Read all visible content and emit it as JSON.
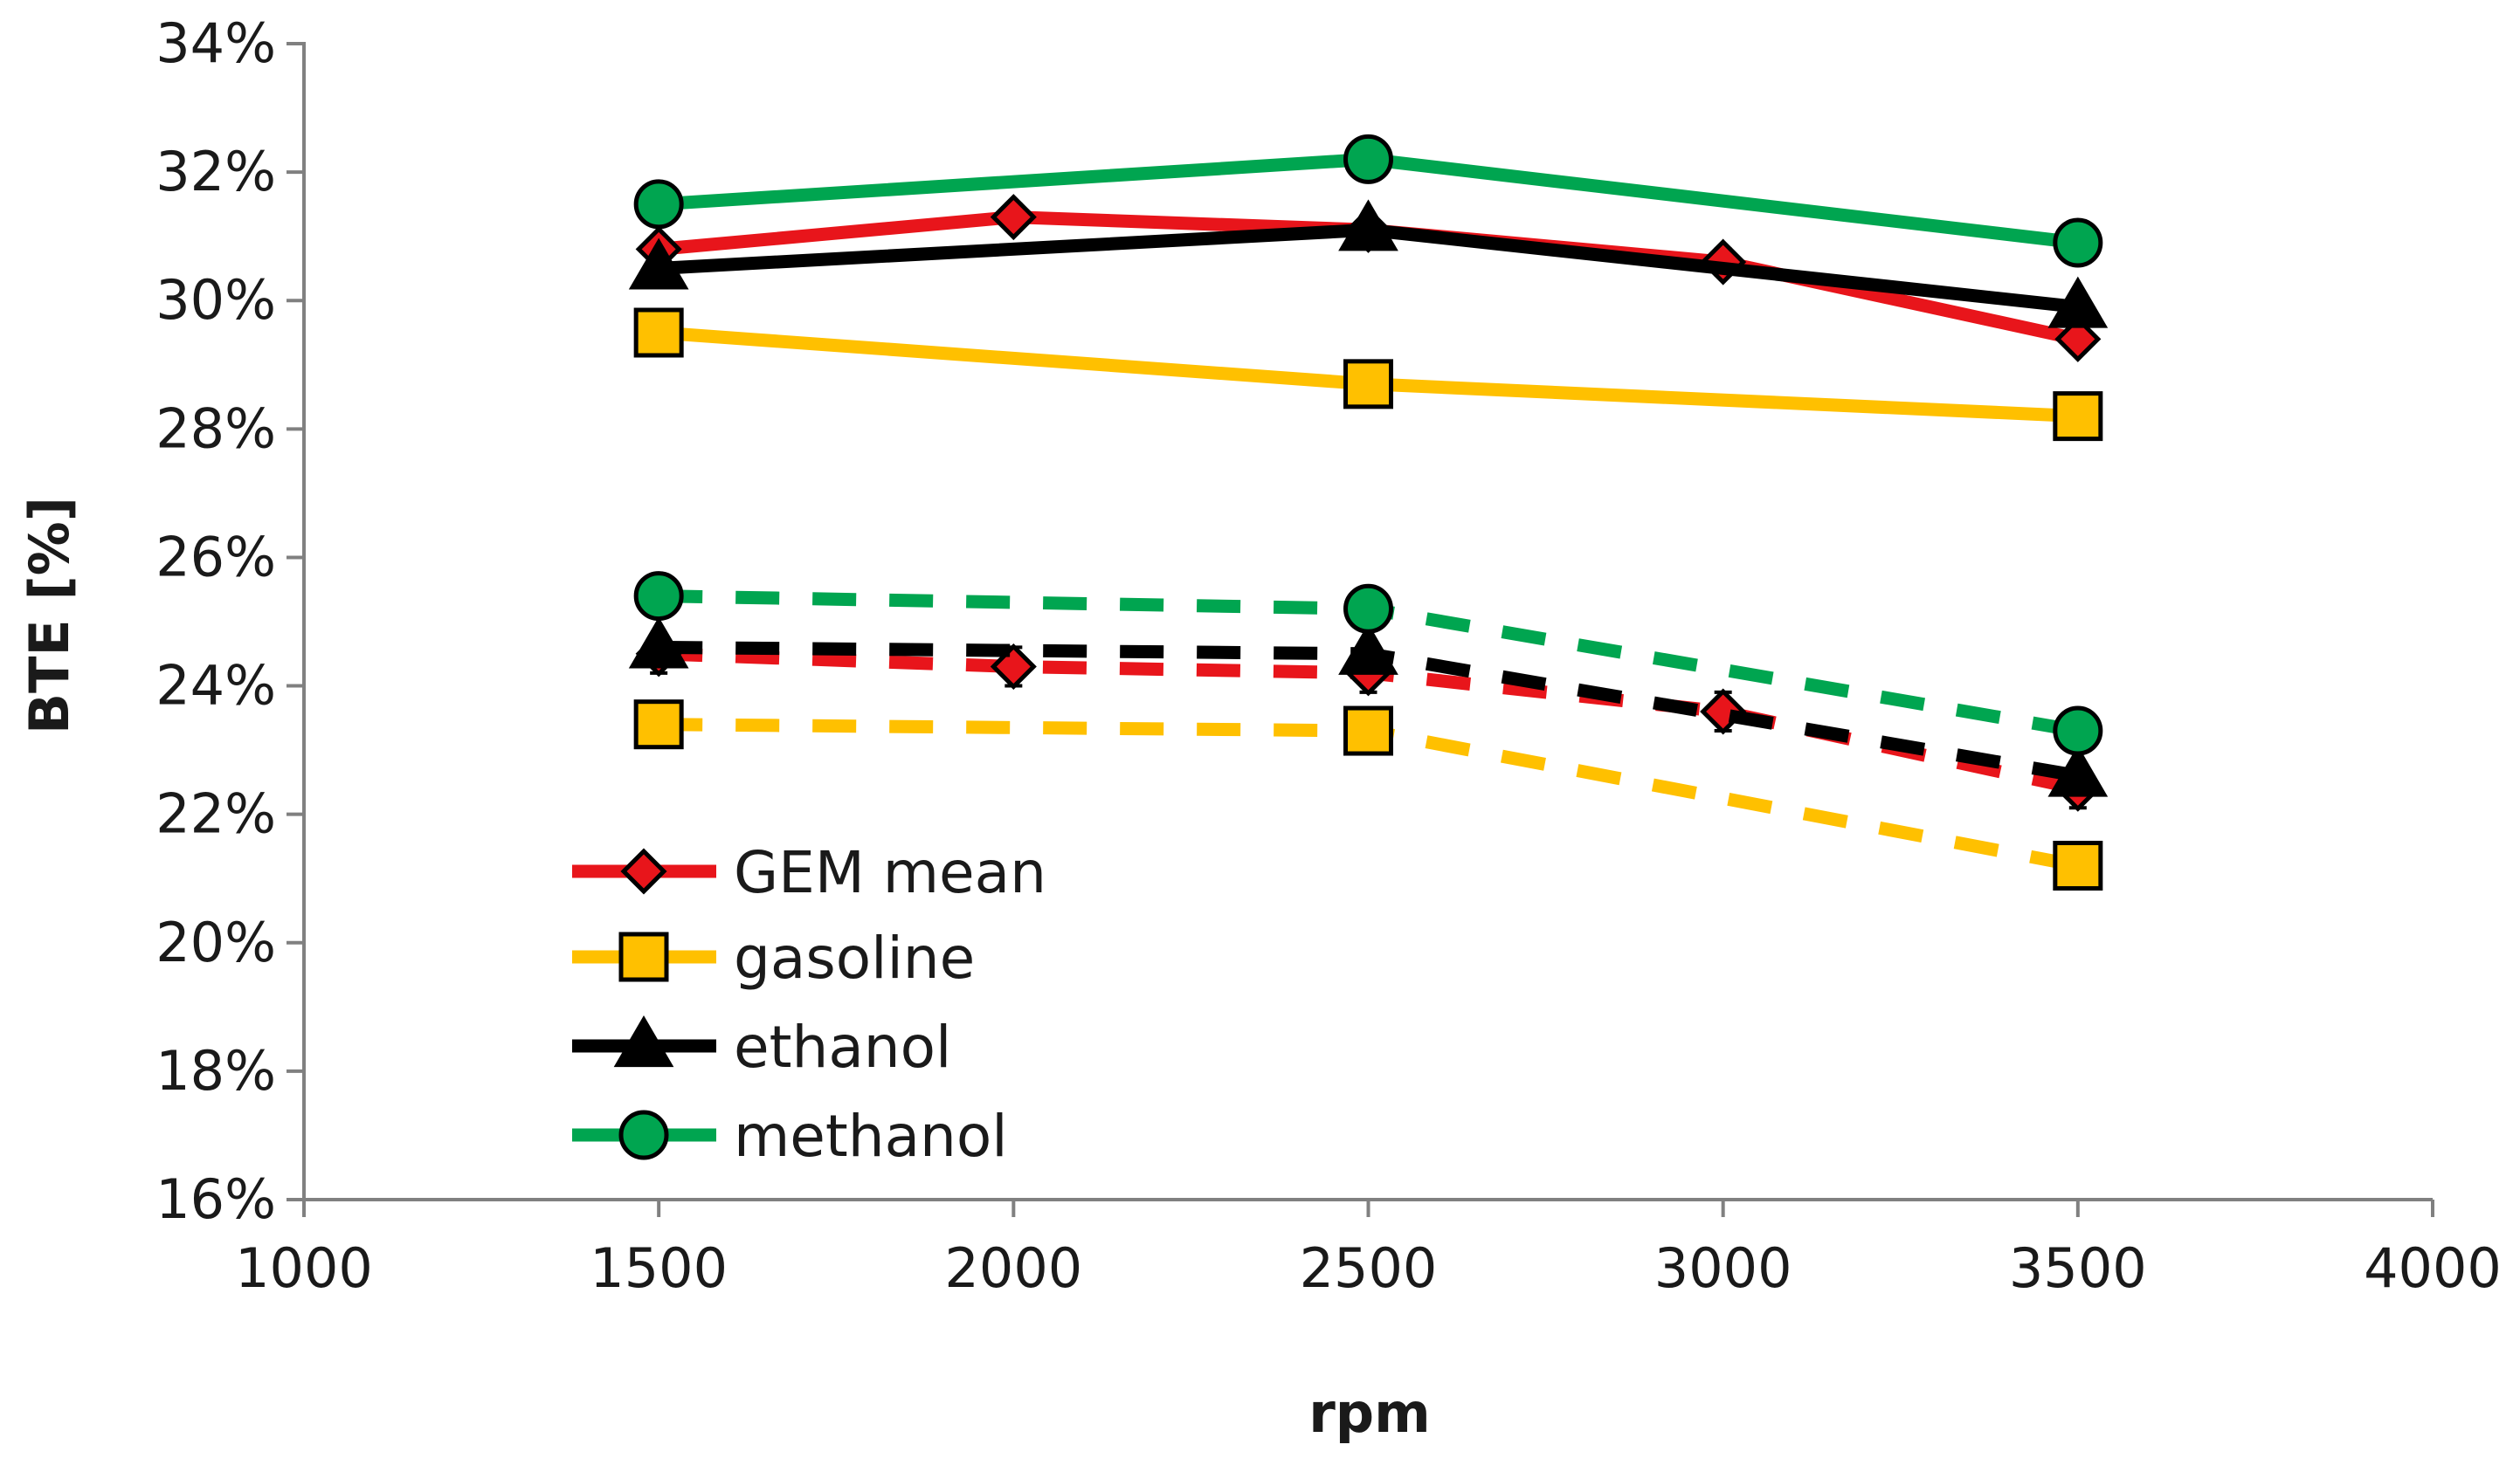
{
  "chart_data": {
    "type": "line",
    "xlabel": "rpm",
    "ylabel": "BTE [%]",
    "xlim": [
      1000,
      4000
    ],
    "ylim": [
      16,
      34
    ],
    "x_ticks": [
      1000,
      1500,
      2000,
      2500,
      3000,
      3500,
      4000
    ],
    "y_ticks": [
      16,
      18,
      20,
      22,
      24,
      26,
      28,
      30,
      32,
      34
    ],
    "y_tick_labels": [
      "16%",
      "18%",
      "20%",
      "22%",
      "24%",
      "26%",
      "28%",
      "30%",
      "32%",
      "34%"
    ],
    "grid": false,
    "legend_position": "bottom-left",
    "legend": [
      "GEM mean",
      "gasoline",
      "ethanol",
      "methanol"
    ],
    "series": [
      {
        "name": "GEM mean",
        "color": "#e8151b",
        "marker": "diamond",
        "line_style": "solid",
        "x": [
          1500,
          2000,
          2500,
          3000,
          3500
        ],
        "values": [
          30.8,
          31.3,
          31.1,
          30.6,
          29.4
        ],
        "errors": [
          0.2,
          0.2,
          0.2,
          0.2,
          0.2
        ]
      },
      {
        "name": "gasoline",
        "color": "#ffc000",
        "marker": "square",
        "line_style": "solid",
        "x": [
          1500,
          2500,
          3500
        ],
        "values": [
          29.5,
          28.7,
          28.2
        ]
      },
      {
        "name": "ethanol",
        "color": "#000000",
        "marker": "triangle",
        "line_style": "solid",
        "x": [
          1500,
          2500,
          3500
        ],
        "values": [
          30.5,
          31.1,
          29.9
        ]
      },
      {
        "name": "methanol",
        "color": "#00a550",
        "marker": "circle",
        "line_style": "solid",
        "x": [
          1500,
          2500,
          3500
        ],
        "values": [
          31.5,
          32.2,
          30.9
        ]
      },
      {
        "name": "GEM mean",
        "color": "#e8151b",
        "marker": "diamond",
        "line_style": "dashed",
        "x": [
          1500,
          2000,
          2500,
          3000,
          3500
        ],
        "values": [
          24.5,
          24.3,
          24.2,
          23.6,
          22.4
        ],
        "errors": [
          0.3,
          0.3,
          0.3,
          0.3,
          0.3
        ]
      },
      {
        "name": "gasoline",
        "color": "#ffc000",
        "marker": "square",
        "line_style": "dashed",
        "x": [
          1500,
          2500,
          3500
        ],
        "values": [
          23.4,
          23.3,
          21.2
        ]
      },
      {
        "name": "ethanol",
        "color": "#000000",
        "marker": "triangle",
        "line_style": "dashed",
        "x": [
          1500,
          2500,
          3500
        ],
        "values": [
          24.6,
          24.5,
          22.6
        ]
      },
      {
        "name": "methanol",
        "color": "#00a550",
        "marker": "circle",
        "line_style": "dashed",
        "x": [
          1500,
          2500,
          3500
        ],
        "values": [
          25.4,
          25.2,
          23.3
        ]
      }
    ]
  }
}
